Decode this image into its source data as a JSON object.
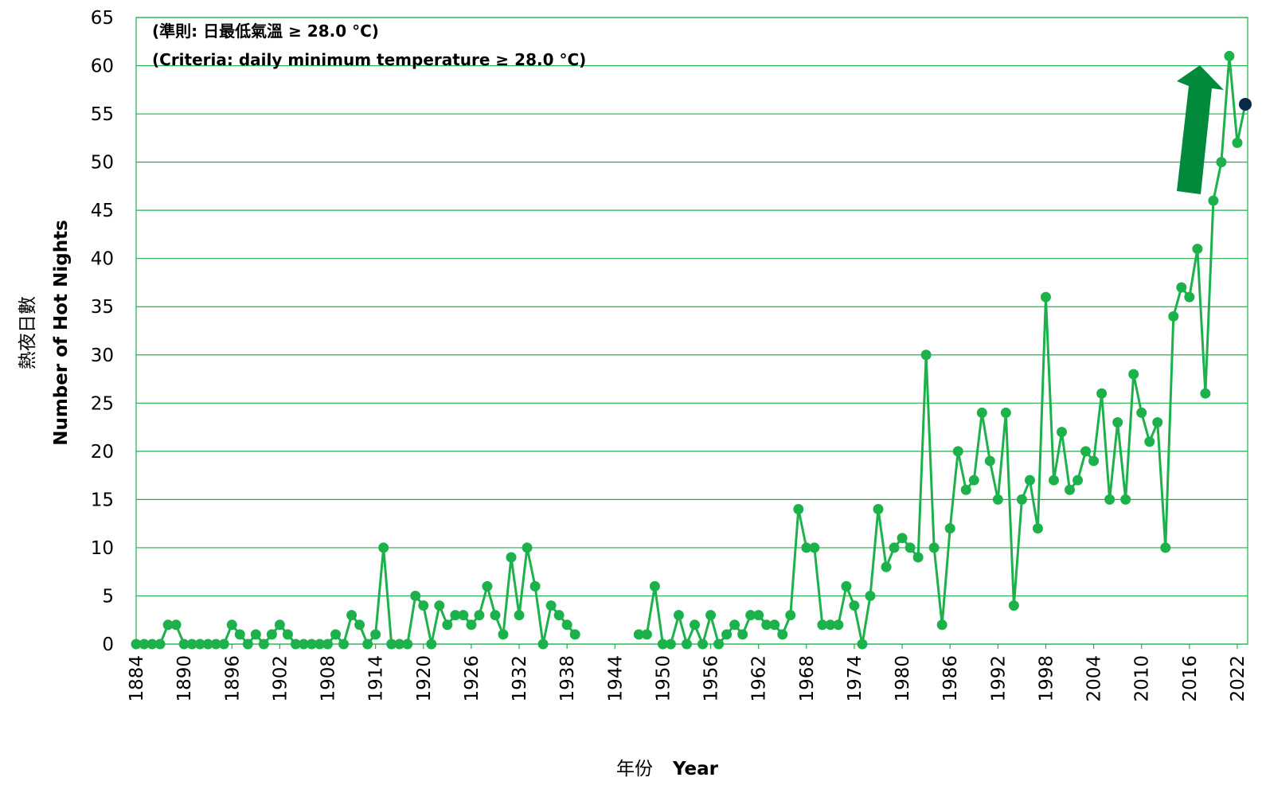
{
  "chart_data": {
    "type": "line",
    "annotations": [
      "(準則: 日最低氣溫 ≥ 28.0 °C)",
      "(Criteria: daily minimum temperature ≥ 28.0 °C)"
    ],
    "xlabel": [
      "年份",
      "Year"
    ],
    "ylabel": [
      "熱夜日數",
      "Number of Hot Nights"
    ],
    "x": [
      1884,
      1885,
      1886,
      1887,
      1888,
      1889,
      1890,
      1891,
      1892,
      1893,
      1894,
      1895,
      1896,
      1897,
      1898,
      1899,
      1900,
      1901,
      1902,
      1903,
      1904,
      1905,
      1906,
      1907,
      1908,
      1909,
      1910,
      1911,
      1912,
      1913,
      1914,
      1915,
      1916,
      1917,
      1918,
      1919,
      1920,
      1921,
      1922,
      1923,
      1924,
      1925,
      1926,
      1927,
      1928,
      1929,
      1930,
      1931,
      1932,
      1933,
      1934,
      1935,
      1936,
      1937,
      1938,
      1939,
      1940,
      1941,
      1942,
      1943,
      1944,
      1945,
      1946,
      1947,
      1948,
      1949,
      1950,
      1951,
      1952,
      1953,
      1954,
      1955,
      1956,
      1957,
      1958,
      1959,
      1960,
      1961,
      1962,
      1963,
      1964,
      1965,
      1966,
      1967,
      1968,
      1969,
      1970,
      1971,
      1972,
      1973,
      1974,
      1975,
      1976,
      1977,
      1978,
      1979,
      1980,
      1981,
      1982,
      1983,
      1984,
      1985,
      1986,
      1987,
      1988,
      1989,
      1990,
      1991,
      1992,
      1993,
      1994,
      1995,
      1996,
      1997,
      1998,
      1999,
      2000,
      2001,
      2002,
      2003,
      2004,
      2005,
      2006,
      2007,
      2008,
      2009,
      2010,
      2011,
      2012,
      2013,
      2014,
      2015,
      2016,
      2017,
      2018,
      2019,
      2020,
      2021,
      2022,
      2023
    ],
    "values": [
      0,
      0,
      0,
      0,
      2,
      2,
      0,
      0,
      0,
      0,
      0,
      0,
      2,
      1,
      0,
      1,
      0,
      1,
      2,
      1,
      0,
      0,
      0,
      0,
      0,
      1,
      0,
      3,
      2,
      0,
      1,
      10,
      0,
      0,
      0,
      5,
      4,
      0,
      4,
      2,
      3,
      3,
      2,
      3,
      6,
      3,
      1,
      9,
      3,
      10,
      6,
      0,
      4,
      3,
      2,
      1,
      null,
      null,
      null,
      null,
      null,
      null,
      null,
      1,
      1,
      6,
      0,
      0,
      3,
      0,
      2,
      0,
      3,
      0,
      1,
      2,
      1,
      3,
      3,
      2,
      2,
      1,
      3,
      14,
      10,
      10,
      2,
      2,
      2,
      6,
      4,
      0,
      5,
      14,
      8,
      10,
      11,
      10,
      9,
      30,
      10,
      2,
      12,
      20,
      16,
      17,
      24,
      19,
      15,
      24,
      4,
      15,
      17,
      12,
      36,
      17,
      22,
      16,
      17,
      20,
      19,
      26,
      15,
      23,
      15,
      28,
      24,
      21,
      23,
      10,
      34,
      37,
      36,
      41,
      26,
      46,
      50,
      61,
      52,
      56
    ],
    "color": "#1db14b",
    "last_point_color": "#0b2a4a",
    "grid_color": "#22b04b",
    "xlim": [
      1884,
      2023.3
    ],
    "xticks": [
      1884,
      1890,
      1896,
      1902,
      1908,
      1914,
      1920,
      1926,
      1932,
      1938,
      1944,
      1950,
      1956,
      1962,
      1968,
      1974,
      1980,
      1986,
      1992,
      1998,
      2004,
      2010,
      2016,
      2022
    ],
    "ylim": [
      0,
      65
    ],
    "yticks": [
      0,
      5,
      10,
      15,
      20,
      25,
      30,
      35,
      40,
      45,
      50,
      55,
      60,
      65
    ],
    "grid": true
  }
}
